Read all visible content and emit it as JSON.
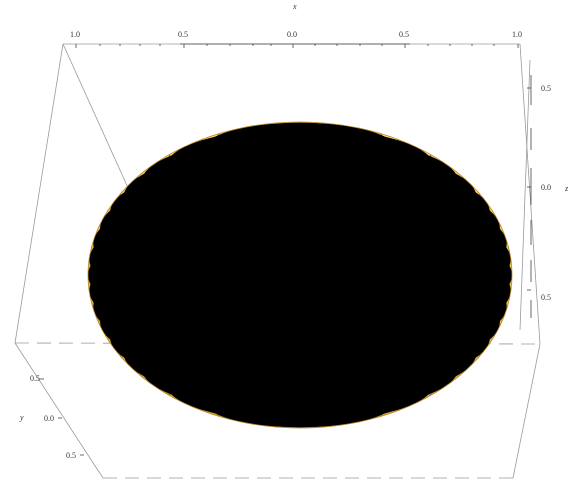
{
  "plot": {
    "type": "3d-surface",
    "surface": "ellipsoid",
    "colors": {
      "surface_light": "#fff59a",
      "surface_mid": "#f5cf54",
      "surface_dark": "#c9922a",
      "mesh": "#6f6a58",
      "box": "#9a9a9a",
      "axis": "#444444"
    },
    "axes": {
      "x": {
        "label": "x",
        "range": [
          -1.0,
          1.0
        ],
        "ticks": [
          "1.0",
          "0.5",
          "0.0",
          "0.5",
          "1.0"
        ]
      },
      "y": {
        "label": "y",
        "range": [
          -0.5,
          0.5
        ],
        "ticks": [
          "0.5",
          "0.0",
          "0.5"
        ]
      },
      "z": {
        "label": "z",
        "range": [
          -0.5,
          0.5
        ],
        "ticks": [
          "0.5",
          "0.0",
          "0.5"
        ]
      }
    }
  }
}
